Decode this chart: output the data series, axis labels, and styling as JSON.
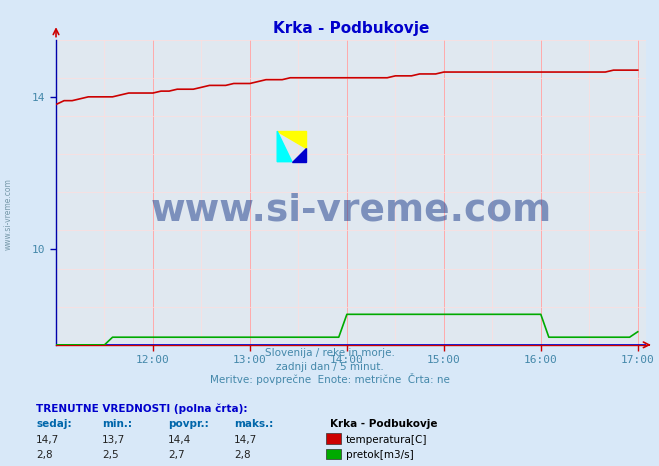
{
  "title": "Krka - Podbukovje",
  "title_color": "#0000cc",
  "bg_color": "#d8e8f8",
  "plot_bg_color": "#e0e8f0",
  "xlim_hours": [
    11.0,
    17.0833
  ],
  "ylim": [
    7.5,
    15.5
  ],
  "yticks": [
    10,
    14
  ],
  "xtick_labels": [
    "12:00",
    "13:00",
    "14:00",
    "15:00",
    "16:00",
    "17:00"
  ],
  "xtick_positions": [
    12.0,
    13.0,
    14.0,
    15.0,
    16.0,
    17.0
  ],
  "grid_color_major": "#ffaaaa",
  "grid_color_minor": "#ffdddd",
  "temp_color": "#cc0000",
  "flow_color": "#00aa00",
  "zero_line_color": "#0000cc",
  "watermark_text": "www.si-vreme.com",
  "watermark_color": "#1a3a8a",
  "watermark_alpha": 0.5,
  "footer_lines": [
    "Slovenija / reke in morje.",
    "zadnji dan / 5 minut.",
    "Meritve: povprečne  Enote: metrične  Črta: ne"
  ],
  "footer_color": "#4488aa",
  "bottom_label": "TRENUTNE VREDNOSTI (polna črta):",
  "bottom_label_color": "#0000cc",
  "col_headers": [
    "sedaj:",
    "min.:",
    "povpr.:",
    "maks.:"
  ],
  "col_header_color": "#0066aa",
  "temp_values": [
    "14,7",
    "13,7",
    "14,4",
    "14,7"
  ],
  "flow_values": [
    "2,8",
    "2,5",
    "2,7",
    "2,8"
  ],
  "series_label_header": "Krka - Podbukovje",
  "series_labels": [
    "temperatura[C]",
    "pretok[m3/s]"
  ],
  "series_colors": [
    "#cc0000",
    "#00aa00"
  ],
  "temp_data_x": [
    11.0,
    11.083,
    11.166,
    11.25,
    11.333,
    11.416,
    11.5,
    11.583,
    11.666,
    11.75,
    11.833,
    11.916,
    12.0,
    12.083,
    12.166,
    12.25,
    12.333,
    12.416,
    12.5,
    12.583,
    12.666,
    12.75,
    12.833,
    12.916,
    13.0,
    13.083,
    13.166,
    13.25,
    13.333,
    13.416,
    13.5,
    13.583,
    13.666,
    13.75,
    13.833,
    13.916,
    14.0,
    14.083,
    14.166,
    14.25,
    14.333,
    14.416,
    14.5,
    14.583,
    14.666,
    14.75,
    14.833,
    14.916,
    15.0,
    15.083,
    15.166,
    15.25,
    15.333,
    15.416,
    15.5,
    15.583,
    15.666,
    15.75,
    15.833,
    15.916,
    16.0,
    16.083,
    16.166,
    16.25,
    16.333,
    16.416,
    16.5,
    16.583,
    16.666,
    16.75,
    16.833,
    16.916,
    17.0
  ],
  "temp_data_y": [
    13.8,
    13.9,
    13.9,
    13.95,
    14.0,
    14.0,
    14.0,
    14.0,
    14.05,
    14.1,
    14.1,
    14.1,
    14.1,
    14.15,
    14.15,
    14.2,
    14.2,
    14.2,
    14.25,
    14.3,
    14.3,
    14.3,
    14.35,
    14.35,
    14.35,
    14.4,
    14.45,
    14.45,
    14.45,
    14.5,
    14.5,
    14.5,
    14.5,
    14.5,
    14.5,
    14.5,
    14.5,
    14.5,
    14.5,
    14.5,
    14.5,
    14.5,
    14.55,
    14.55,
    14.55,
    14.6,
    14.6,
    14.6,
    14.65,
    14.65,
    14.65,
    14.65,
    14.65,
    14.65,
    14.65,
    14.65,
    14.65,
    14.65,
    14.65,
    14.65,
    14.65,
    14.65,
    14.65,
    14.65,
    14.65,
    14.65,
    14.65,
    14.65,
    14.65,
    14.7,
    14.7,
    14.7,
    14.7
  ],
  "flow_data_x": [
    11.0,
    11.5,
    11.583,
    11.916,
    12.0,
    13.916,
    14.0,
    15.916,
    16.0,
    16.083,
    16.916,
    17.0
  ],
  "flow_data_y_raw": [
    0.0,
    0.0,
    0.07,
    0.07,
    0.07,
    0.07,
    0.28,
    0.28,
    0.28,
    0.07,
    0.07,
    0.12
  ],
  "flow_max_raw": 2.8,
  "flow_ymin": 7.5,
  "flow_ymax": 8.3,
  "side_text": "www.si-vreme.com",
  "side_text_color": "#7799aa"
}
